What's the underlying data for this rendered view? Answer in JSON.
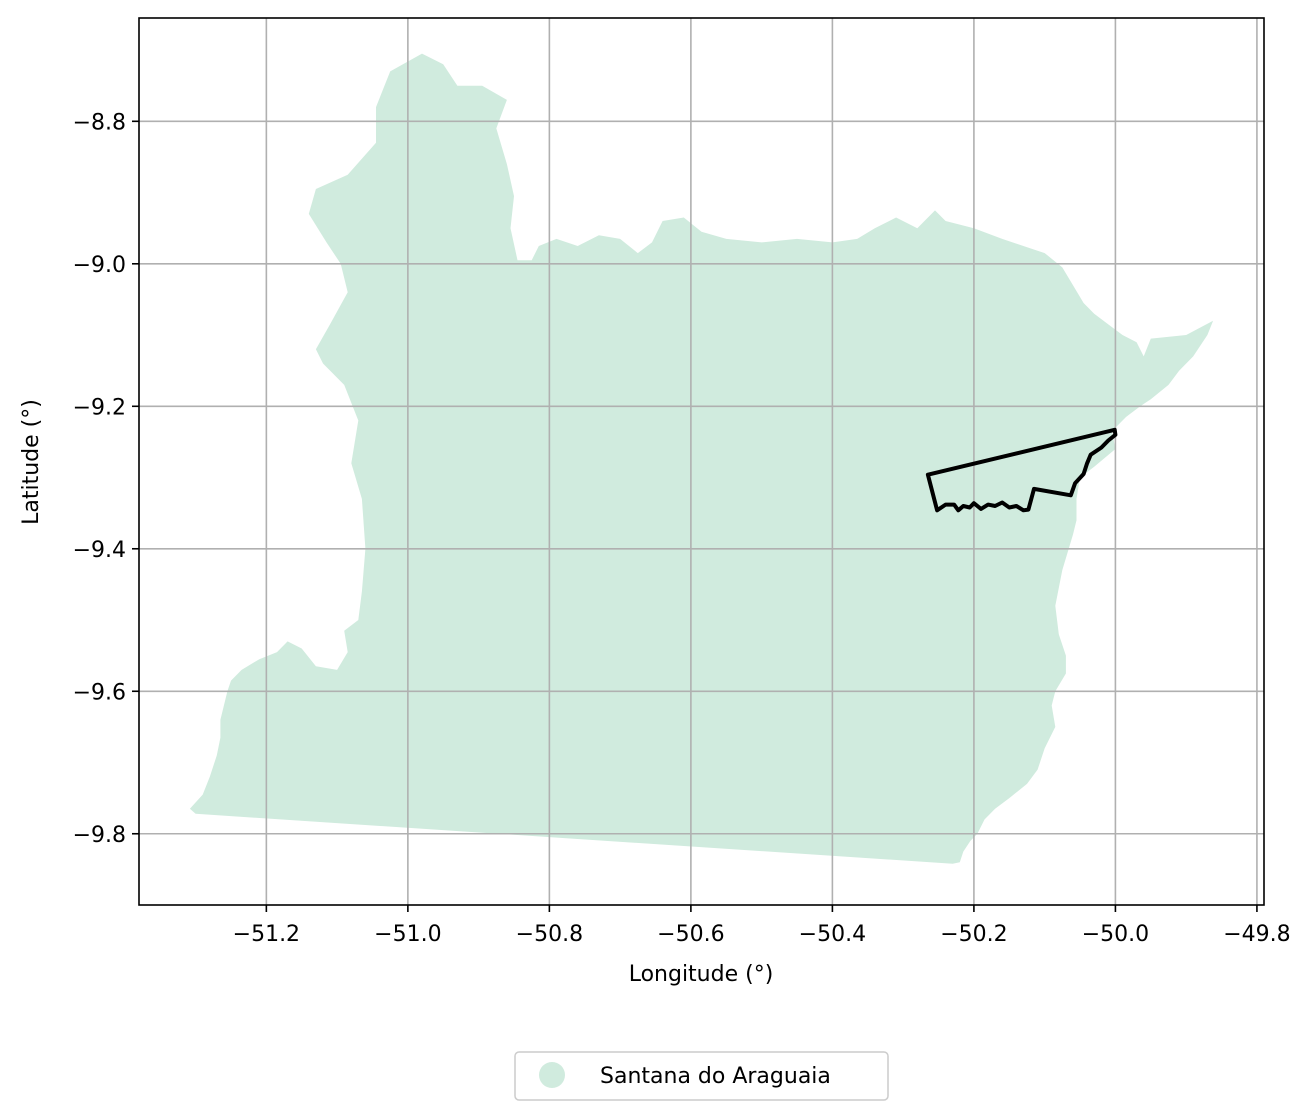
{
  "chart_data": {
    "type": "map",
    "title": "",
    "xlabel": "Longitude (°)",
    "ylabel": "Latitude (°)",
    "xlim": [
      -51.38,
      -49.79
    ],
    "ylim": [
      -9.9,
      -8.655
    ],
    "x_ticks": [
      -51.2,
      -51.0,
      -50.8,
      -50.6,
      -50.4,
      -50.2,
      -50.0,
      -49.8
    ],
    "x_tick_labels": [
      "−51.2",
      "−51.0",
      "−50.8",
      "−50.6",
      "−50.4",
      "−50.2",
      "−50.0",
      "−49.8"
    ],
    "y_ticks": [
      -8.8,
      -9.0,
      -9.2,
      -9.4,
      -9.6,
      -9.8
    ],
    "y_tick_labels": [
      "−8.8",
      "−9.0",
      "−9.2",
      "−9.4",
      "−9.6",
      "−9.8"
    ],
    "grid": true,
    "legend_position": "bottom-center, below plot",
    "series": [
      {
        "name": "Santana do Araguaia",
        "kind": "filled-region",
        "color": "#d0ebde",
        "coordinates": [
          [
            -51.308,
            -9.765
          ],
          [
            -51.29,
            -9.745
          ],
          [
            -51.28,
            -9.72
          ],
          [
            -51.27,
            -9.69
          ],
          [
            -51.265,
            -9.665
          ],
          [
            -51.265,
            -9.64
          ],
          [
            -51.255,
            -9.6
          ],
          [
            -51.25,
            -9.585
          ],
          [
            -51.235,
            -9.57
          ],
          [
            -51.21,
            -9.555
          ],
          [
            -51.185,
            -9.545
          ],
          [
            -51.17,
            -9.53
          ],
          [
            -51.15,
            -9.54
          ],
          [
            -51.13,
            -9.565
          ],
          [
            -51.1,
            -9.57
          ],
          [
            -51.085,
            -9.545
          ],
          [
            -51.09,
            -9.515
          ],
          [
            -51.07,
            -9.5
          ],
          [
            -51.065,
            -9.46
          ],
          [
            -51.06,
            -9.4
          ],
          [
            -51.065,
            -9.33
          ],
          [
            -51.08,
            -9.28
          ],
          [
            -51.07,
            -9.22
          ],
          [
            -51.09,
            -9.17
          ],
          [
            -51.12,
            -9.14
          ],
          [
            -51.13,
            -9.12
          ],
          [
            -51.11,
            -9.085
          ],
          [
            -51.085,
            -9.04
          ],
          [
            -51.095,
            -9.0
          ],
          [
            -51.115,
            -8.97
          ],
          [
            -51.14,
            -8.93
          ],
          [
            -51.13,
            -8.895
          ],
          [
            -51.085,
            -8.875
          ],
          [
            -51.045,
            -8.83
          ],
          [
            -51.045,
            -8.78
          ],
          [
            -51.025,
            -8.73
          ],
          [
            -50.98,
            -8.705
          ],
          [
            -50.95,
            -8.72
          ],
          [
            -50.93,
            -8.75
          ],
          [
            -50.895,
            -8.75
          ],
          [
            -50.86,
            -8.77
          ],
          [
            -50.875,
            -8.81
          ],
          [
            -50.86,
            -8.86
          ],
          [
            -50.85,
            -8.905
          ],
          [
            -50.855,
            -8.95
          ],
          [
            -50.845,
            -8.995
          ],
          [
            -50.825,
            -8.995
          ],
          [
            -50.815,
            -8.975
          ],
          [
            -50.79,
            -8.965
          ],
          [
            -50.76,
            -8.975
          ],
          [
            -50.73,
            -8.96
          ],
          [
            -50.7,
            -8.965
          ],
          [
            -50.675,
            -8.985
          ],
          [
            -50.655,
            -8.97
          ],
          [
            -50.64,
            -8.94
          ],
          [
            -50.61,
            -8.935
          ],
          [
            -50.585,
            -8.955
          ],
          [
            -50.55,
            -8.965
          ],
          [
            -50.5,
            -8.97
          ],
          [
            -50.45,
            -8.965
          ],
          [
            -50.4,
            -8.97
          ],
          [
            -50.365,
            -8.965
          ],
          [
            -50.34,
            -8.95
          ],
          [
            -50.31,
            -8.935
          ],
          [
            -50.28,
            -8.95
          ],
          [
            -50.255,
            -8.925
          ],
          [
            -50.24,
            -8.94
          ],
          [
            -50.2,
            -8.95
          ],
          [
            -50.16,
            -8.965
          ],
          [
            -50.13,
            -8.975
          ],
          [
            -50.1,
            -8.985
          ],
          [
            -50.075,
            -9.005
          ],
          [
            -50.06,
            -9.03
          ],
          [
            -50.045,
            -9.055
          ],
          [
            -50.03,
            -9.07
          ],
          [
            -50.01,
            -9.085
          ],
          [
            -49.99,
            -9.1
          ],
          [
            -49.97,
            -9.11
          ],
          [
            -49.96,
            -9.13
          ],
          [
            -49.95,
            -9.105
          ],
          [
            -49.9,
            -9.1
          ],
          [
            -49.862,
            -9.08
          ],
          [
            -49.87,
            -9.1
          ],
          [
            -49.89,
            -9.13
          ],
          [
            -49.91,
            -9.15
          ],
          [
            -49.925,
            -9.17
          ],
          [
            -49.95,
            -9.19
          ],
          [
            -49.965,
            -9.2
          ],
          [
            -49.985,
            -9.215
          ],
          [
            -50.005,
            -9.235
          ],
          [
            -50.0,
            -9.26
          ],
          [
            -50.03,
            -9.285
          ],
          [
            -50.05,
            -9.3
          ],
          [
            -50.055,
            -9.33
          ],
          [
            -50.055,
            -9.36
          ],
          [
            -50.06,
            -9.38
          ],
          [
            -50.075,
            -9.43
          ],
          [
            -50.085,
            -9.48
          ],
          [
            -50.08,
            -9.52
          ],
          [
            -50.07,
            -9.55
          ],
          [
            -50.07,
            -9.575
          ],
          [
            -50.085,
            -9.6
          ],
          [
            -50.09,
            -9.62
          ],
          [
            -50.085,
            -9.65
          ],
          [
            -50.1,
            -9.68
          ],
          [
            -50.11,
            -9.71
          ],
          [
            -50.125,
            -9.73
          ],
          [
            -50.15,
            -9.75
          ],
          [
            -50.17,
            -9.765
          ],
          [
            -50.185,
            -9.78
          ],
          [
            -50.195,
            -9.8
          ],
          [
            -50.205,
            -9.81
          ],
          [
            -50.215,
            -9.825
          ],
          [
            -50.22,
            -9.84
          ],
          [
            -50.23,
            -9.842
          ],
          [
            -51.3,
            -9.772
          ]
        ]
      },
      {
        "name": "",
        "kind": "outline",
        "color": "#000000",
        "coordinates": [
          [
            -50.265,
            -9.296
          ],
          [
            -50.252,
            -9.346
          ],
          [
            -50.24,
            -9.338
          ],
          [
            -50.228,
            -9.338
          ],
          [
            -50.222,
            -9.346
          ],
          [
            -50.215,
            -9.34
          ],
          [
            -50.206,
            -9.342
          ],
          [
            -50.2,
            -9.336
          ],
          [
            -50.19,
            -9.344
          ],
          [
            -50.18,
            -9.338
          ],
          [
            -50.17,
            -9.34
          ],
          [
            -50.16,
            -9.335
          ],
          [
            -50.15,
            -9.342
          ],
          [
            -50.14,
            -9.34
          ],
          [
            -50.13,
            -9.346
          ],
          [
            -50.123,
            -9.345
          ],
          [
            -50.115,
            -9.316
          ],
          [
            -50.063,
            -9.325
          ],
          [
            -50.057,
            -9.308
          ],
          [
            -50.045,
            -9.295
          ],
          [
            -50.04,
            -9.28
          ],
          [
            -50.035,
            -9.268
          ],
          [
            -50.02,
            -9.258
          ],
          [
            -50.01,
            -9.248
          ],
          [
            -50.0,
            -9.24
          ],
          [
            -50.001,
            -9.233
          ],
          [
            -50.265,
            -9.296
          ]
        ]
      }
    ]
  },
  "legend": {
    "entries": [
      {
        "label": "Santana do Araguaia",
        "color": "#d0ebde"
      }
    ]
  }
}
